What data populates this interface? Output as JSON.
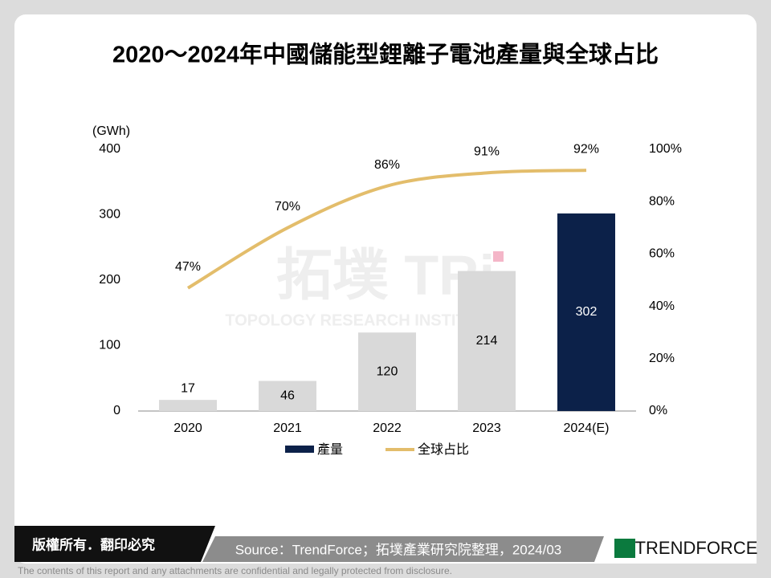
{
  "chart_data": {
    "type": "bar",
    "title": "2020～2024年中國儲能型鋰離子電池產量與全球占比",
    "y_unit": "(GWh)",
    "categories": [
      "2020",
      "2021",
      "2022",
      "2023",
      "2024(E)"
    ],
    "series": [
      {
        "name": "產量",
        "type": "bar",
        "color": "#0c2149",
        "colors": [
          "#d9d9d9",
          "#d9d9d9",
          "#d9d9d9",
          "#d9d9d9",
          "#0c2149"
        ],
        "values": [
          17,
          46,
          120,
          214,
          302
        ]
      },
      {
        "name": "全球占比",
        "type": "line",
        "axis": "y2",
        "color": "#e3bd6b",
        "values": [
          47,
          70,
          86,
          91,
          92
        ],
        "value_labels": [
          "47%",
          "70%",
          "86%",
          "91%",
          "92%"
        ]
      }
    ],
    "ylim": [
      0,
      400
    ],
    "yticks": [
      0,
      100,
      200,
      300,
      400
    ],
    "y2lim": [
      0,
      100
    ],
    "y2ticks": [
      {
        "value": 0,
        "label": "0%"
      },
      {
        "value": 20,
        "label": "20%"
      },
      {
        "value": 40,
        "label": "40%"
      },
      {
        "value": 60,
        "label": "60%"
      },
      {
        "value": 80,
        "label": "80%"
      },
      {
        "value": 100,
        "label": "100%"
      }
    ],
    "legend": "bottom",
    "watermark": {
      "logo": "拓墣 TRi",
      "text": "TOPOLOGY RESEARCH INSTITUTE"
    }
  },
  "footer": {
    "copyright": "版權所有．翻印必究",
    "source": "Source：TrendForce；拓墣產業研究院整理，2024/03",
    "brand": "TRENDFORCE",
    "disclaimer": "The contents of this report and any attachments are confidential and legally protected from disclosure."
  }
}
